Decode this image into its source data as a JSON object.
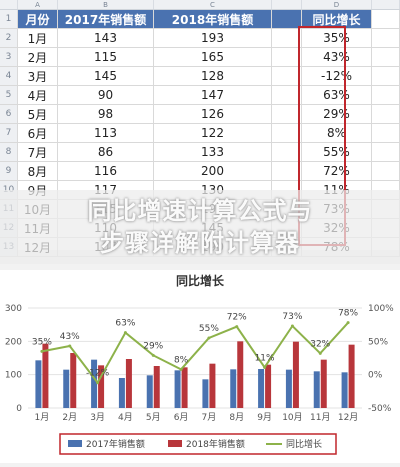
{
  "table": {
    "col_letters": [
      "A",
      "B",
      "C",
      "",
      "D"
    ],
    "headers": [
      "月份",
      "2017年销售额",
      "2018年销售额",
      "",
      "同比增长"
    ],
    "row_numbers": [
      "1",
      "2",
      "3",
      "4",
      "5",
      "6",
      "7",
      "8",
      "9",
      "10",
      "11",
      "12",
      "13"
    ],
    "rows": [
      [
        "1月",
        "143",
        "193",
        "35%"
      ],
      [
        "2月",
        "115",
        "165",
        "43%"
      ],
      [
        "3月",
        "145",
        "128",
        "-12%"
      ],
      [
        "4月",
        "90",
        "147",
        "63%"
      ],
      [
        "5月",
        "98",
        "126",
        "29%"
      ],
      [
        "6月",
        "113",
        "122",
        "8%"
      ],
      [
        "7月",
        "86",
        "133",
        "55%"
      ],
      [
        "8月",
        "116",
        "200",
        "72%"
      ],
      [
        "9月",
        "117",
        "130",
        "11%"
      ],
      [
        "10月",
        "115",
        "199",
        "73%"
      ],
      [
        "11月",
        "110",
        "145",
        "32%"
      ],
      [
        "12月",
        "107",
        "190",
        "78%"
      ]
    ]
  },
  "banner": {
    "line1": "同比增速计算公式与",
    "line2": "步骤详解附计算器"
  },
  "chart_data": {
    "type": "bar",
    "title": "同比增长",
    "categories": [
      "1月",
      "2月",
      "3月",
      "4月",
      "5月",
      "6月",
      "7月",
      "8月",
      "9月",
      "10月",
      "11月",
      "12月"
    ],
    "series": [
      {
        "name": "2017年销售额",
        "type": "bar",
        "axis": "left",
        "color": "#4a72b0",
        "values": [
          143,
          115,
          145,
          90,
          98,
          113,
          86,
          116,
          117,
          115,
          110,
          107
        ]
      },
      {
        "name": "2018年销售额",
        "type": "bar",
        "axis": "left",
        "color": "#b8363b",
        "values": [
          193,
          165,
          128,
          147,
          126,
          122,
          133,
          200,
          130,
          199,
          145,
          190
        ]
      },
      {
        "name": "同比增长",
        "type": "line",
        "axis": "right",
        "color": "#8db24a",
        "values": [
          35,
          43,
          -12,
          63,
          29,
          8,
          55,
          72,
          11,
          73,
          32,
          78
        ]
      }
    ],
    "point_labels": [
      "35%",
      "43%",
      "-12%",
      "63%",
      "29%",
      "8%",
      "55%",
      "72%",
      "11%",
      "73%",
      "32%",
      "78%"
    ],
    "left_axis": {
      "ylim": [
        0,
        300
      ],
      "ticks": [
        "0",
        "100",
        "200",
        "300"
      ]
    },
    "right_axis": {
      "ylim": [
        -50,
        100
      ],
      "ticks": [
        "-50%",
        "0%",
        "50%",
        "100%"
      ]
    },
    "legend_position": "bottom"
  }
}
